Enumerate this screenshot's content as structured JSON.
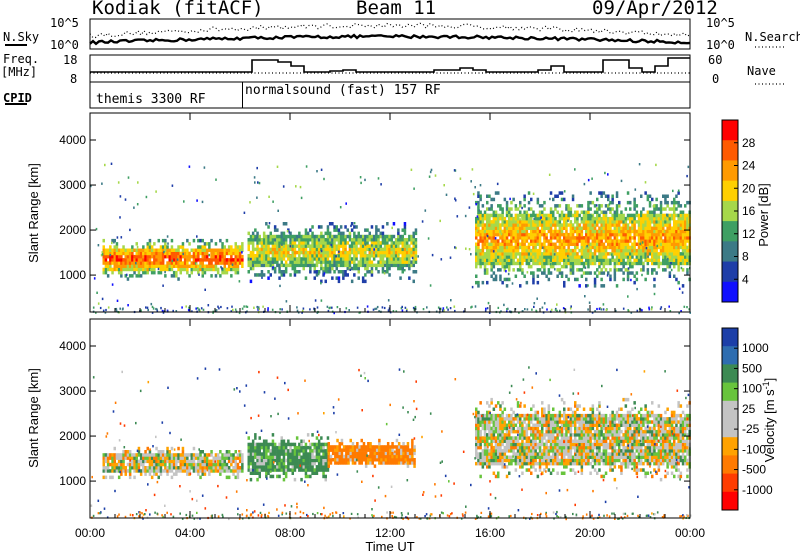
{
  "header": {
    "station": "Kodiak (fitACF)",
    "beam": "Beam 11",
    "date": "09/Apr/2012"
  },
  "left_labels": {
    "nsky": "N.Sky",
    "freq_line1": "Freq.",
    "freq_line2": "[MHz]",
    "cpid": "CPID"
  },
  "right_labels": {
    "nsearch": "N.Search",
    "nave": "Nave"
  },
  "noise_axis": {
    "top": "10^5",
    "bottom": "10^0"
  },
  "freq_axis": {
    "top": "18",
    "bottom": "8"
  },
  "nave_axis": {
    "top": "60",
    "bottom": "0"
  },
  "cpid_modes": [
    {
      "label": "themis 3300 RF",
      "start_hour": 0,
      "end_hour": 6.1
    },
    {
      "label": "normalsound (fast) 157 RF",
      "start_hour": 6.1,
      "end_hour": 24
    }
  ],
  "x_axis": {
    "title": "Time UT",
    "ticks": [
      "00:00",
      "04:00",
      "08:00",
      "12:00",
      "16:00",
      "20:00",
      "00:00"
    ]
  },
  "panels": {
    "power": {
      "ylabel": "Slant Range [km]",
      "yticks": [
        "1000",
        "2000",
        "3000",
        "4000"
      ],
      "colorbar_label": "Power [dB]",
      "colorbar_ticks": [
        "28",
        "24",
        "20",
        "16",
        "12",
        "8",
        "4"
      ],
      "colors": [
        "#ff0000",
        "#ff5a00",
        "#ff9a00",
        "#ffd000",
        "#a6d84a",
        "#3f9f63",
        "#3c7a86",
        "#1f3ea8",
        "#1010ff"
      ]
    },
    "velocity": {
      "ylabel": "Slant Range [km]",
      "yticks": [
        "1000",
        "2000",
        "3000",
        "4000"
      ],
      "colorbar_label": "Velocity [m s",
      "colorbar_sup": "-1",
      "colorbar_close": "]",
      "colorbar_ticks": [
        "1000",
        "500",
        "100",
        "25",
        "-25",
        "-100",
        "-500",
        "-1000"
      ],
      "colors": [
        "#1c3fa8",
        "#2e6db0",
        "#3c8a53",
        "#68c43c",
        "#c4c4c4",
        "#c4c4c4",
        "#ffa200",
        "#ff7a00",
        "#ff3c00",
        "#ff0000"
      ]
    }
  },
  "chart_data": [
    {
      "type": "heatmap",
      "title": "Power [dB]",
      "xlabel": "Time UT",
      "ylabel": "Slant Range [km]",
      "xlim": [
        0,
        24
      ],
      "ylim": [
        180,
        4600
      ],
      "zlim": [
        0,
        30
      ],
      "regions": [
        {
          "t0": 0.5,
          "t1": 6.1,
          "r0": 950,
          "r1": 1850,
          "core_dB": 26
        },
        {
          "t0": 6.3,
          "t1": 13.0,
          "r0": 900,
          "r1": 2200,
          "core_dB": 18
        },
        {
          "t0": 15.4,
          "t1": 24.0,
          "r0": 800,
          "r1": 2900,
          "core_dB": 22
        }
      ]
    },
    {
      "type": "heatmap",
      "title": "Velocity [m s-1]",
      "xlabel": "Time UT",
      "ylabel": "Slant Range [km]",
      "xlim": [
        0,
        24
      ],
      "ylim": [
        180,
        4600
      ],
      "zlim": [
        -1000,
        1000
      ],
      "regions": [
        {
          "t0": 0.5,
          "t1": 6.1,
          "r0": 1050,
          "r1": 1800,
          "velocity": 0
        },
        {
          "t0": 6.3,
          "t1": 9.5,
          "r0": 1000,
          "r1": 2100,
          "velocity": 150
        },
        {
          "t0": 9.5,
          "t1": 13.0,
          "r0": 1300,
          "r1": 2000,
          "velocity": -150
        },
        {
          "t0": 15.4,
          "t1": 24.0,
          "r0": 1000,
          "r1": 2900,
          "velocity": 0
        }
      ]
    }
  ]
}
